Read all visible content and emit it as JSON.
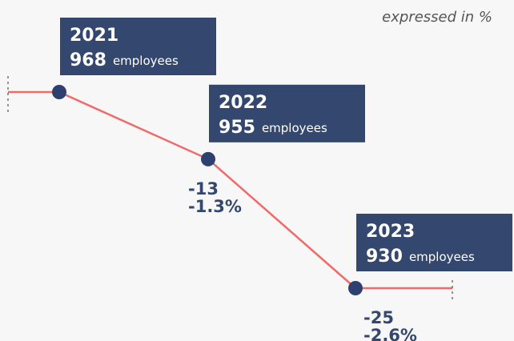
{
  "chart_data": {
    "type": "line",
    "subtitle": "expressed in %",
    "categories": [
      "2021",
      "2022",
      "2023"
    ],
    "values": [
      968,
      955,
      930
    ],
    "unit_label": "employees",
    "changes": [
      null,
      -13,
      -25
    ],
    "change_pct": [
      null,
      -1.3,
      -2.6
    ],
    "change_pct_labels": [
      null,
      "-1.3%",
      "-2.6%"
    ],
    "line_color": "#f06a6a",
    "marker_color": "#2e4070",
    "box_color": "#34486f",
    "label_color": "#34486f"
  }
}
